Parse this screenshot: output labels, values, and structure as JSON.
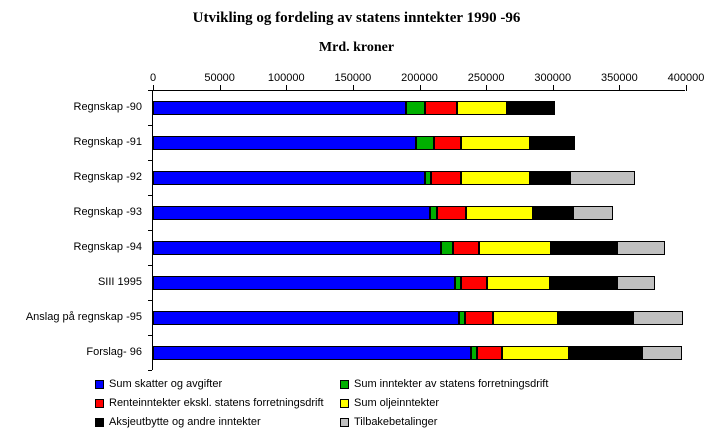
{
  "chart_data": {
    "type": "bar",
    "orientation": "horizontal",
    "stacked": true,
    "title": "Utvikling og fordeling av statens inntekter 1990 -96",
    "subtitle": "Mrd. kroner",
    "xlim": [
      0,
      400000
    ],
    "xticks": [
      0,
      50000,
      100000,
      150000,
      200000,
      250000,
      300000,
      350000,
      400000
    ],
    "grid": false,
    "legend_position": "bottom",
    "axis_position": "top",
    "categories": [
      "Regnskap -90",
      "Regnskap -91",
      "Regnskap -92",
      "Regnskap -93",
      "Regnskap -94",
      "SIII 1995",
      "Anslag på regnskap -95",
      "Forslag- 96"
    ],
    "series": [
      {
        "name": "Sum skatter og avgifter",
        "color": "#0000FF",
        "values": [
          190000,
          197000,
          204000,
          208000,
          216000,
          227000,
          230000,
          239000
        ]
      },
      {
        "name": "Sum inntekter av statens forretningsdrift",
        "color": "#00B000",
        "values": [
          14000,
          14000,
          5000,
          5000,
          9000,
          4000,
          4000,
          4000
        ]
      },
      {
        "name": "Renteinntekter ekskl. statens forretningsdrift",
        "color": "#FF0000",
        "values": [
          24000,
          20000,
          22000,
          22000,
          20000,
          20000,
          21000,
          19000
        ]
      },
      {
        "name": "Sum oljeinntekter",
        "color": "#FFFF00",
        "values": [
          38000,
          52000,
          52000,
          50000,
          54000,
          47000,
          49000,
          50000
        ]
      },
      {
        "name": "Aksjeutbytte og andre inntekter",
        "color": "#000000",
        "values": [
          36000,
          34000,
          30000,
          30000,
          49000,
          50000,
          56000,
          55000
        ]
      },
      {
        "name": "Tilbakebetalinger",
        "color": "#C0C0C0",
        "values": [
          0,
          0,
          49000,
          30000,
          36000,
          29000,
          38000,
          30000
        ]
      }
    ]
  }
}
